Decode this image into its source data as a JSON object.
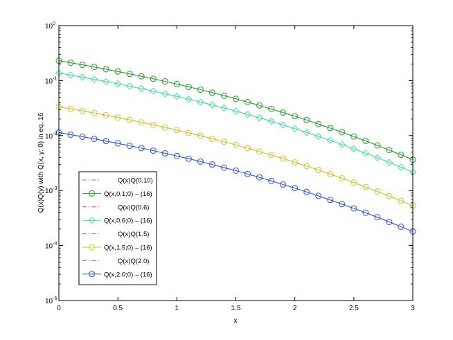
{
  "chart_data": {
    "type": "line",
    "title": "",
    "xlabel": "x",
    "ylabel": "Q(x)Q(y) with Q(x, y; 0) in eq. 16",
    "xlim": [
      0,
      3
    ],
    "ylim": [
      1e-05,
      1
    ],
    "yscale": "log",
    "x_ticks": [
      "0",
      "0.5",
      "1",
      "1.5",
      "2",
      "2.5",
      "3"
    ],
    "y_ticks": [
      {
        "base": "10",
        "exp": "-5"
      },
      {
        "base": "10",
        "exp": "-4"
      },
      {
        "base": "10",
        "exp": "-3"
      },
      {
        "base": "10",
        "exp": "-2"
      },
      {
        "base": "10",
        "exp": "-1"
      },
      {
        "base": "10",
        "exp": "0"
      }
    ],
    "grid": false,
    "legend_position": "lower-left",
    "x": [
      0,
      0.1,
      0.2,
      0.3,
      0.4,
      0.5,
      0.6,
      0.7,
      0.8,
      0.9,
      1.0,
      1.1,
      1.2,
      1.3,
      1.4,
      1.5,
      1.6,
      1.7,
      1.8,
      1.9,
      2.0,
      2.1,
      2.2,
      2.3,
      2.4,
      2.5,
      2.6,
      2.7,
      2.8,
      2.9,
      3.0
    ],
    "series": [
      {
        "name": "Q(x)Q(0.10)",
        "color": "#6a6ad8",
        "style": "dashdot",
        "marker": "none",
        "values": [
          0.2302,
          0.2113,
          0.1935,
          0.1768,
          0.1611,
          0.1464,
          0.1327,
          0.1198,
          0.1078,
          0.0967,
          0.0865,
          0.077,
          0.0683,
          0.0604,
          0.0532,
          0.0466,
          0.0406,
          0.0353,
          0.0305,
          0.0262,
          0.0225,
          0.0192,
          0.0162,
          0.0137,
          0.0115,
          0.00962,
          0.008,
          0.00662,
          0.00545,
          0.00446,
          0.00364
        ]
      },
      {
        "name": "Q(x,0.1;0) – (16)",
        "color": "#1fa01f",
        "style": "solid",
        "marker": "circle",
        "values": [
          0.2302,
          0.2113,
          0.1935,
          0.1768,
          0.1611,
          0.1464,
          0.1327,
          0.1198,
          0.1078,
          0.0967,
          0.0865,
          0.077,
          0.0683,
          0.0604,
          0.0532,
          0.0466,
          0.0406,
          0.0353,
          0.0305,
          0.0262,
          0.0225,
          0.0192,
          0.0162,
          0.0137,
          0.0115,
          0.00962,
          0.008,
          0.00662,
          0.00545,
          0.00446,
          0.00364
        ]
      },
      {
        "name": "Q(x)Q(0.6)",
        "color": "#d84040",
        "style": "dashdot",
        "marker": "none",
        "values": [
          0.1371,
          0.1259,
          0.1153,
          0.1053,
          0.096,
          0.0872,
          0.079,
          0.0714,
          0.0642,
          0.0576,
          0.0515,
          0.0459,
          0.0407,
          0.036,
          0.0317,
          0.0278,
          0.0242,
          0.021,
          0.0182,
          0.0156,
          0.0134,
          0.0114,
          0.00967,
          0.00817,
          0.00686,
          0.00573,
          0.00477,
          0.00395,
          0.00325,
          0.00266,
          0.00217
        ]
      },
      {
        "name": "Q(x,0.6;0) – (16)",
        "color": "#3de0a8",
        "style": "solid",
        "marker": "diamond",
        "values": [
          0.1371,
          0.1259,
          0.1153,
          0.1053,
          0.096,
          0.0872,
          0.079,
          0.0714,
          0.0642,
          0.0576,
          0.0515,
          0.0459,
          0.0407,
          0.036,
          0.0317,
          0.0278,
          0.0242,
          0.021,
          0.0182,
          0.0156,
          0.0134,
          0.0114,
          0.00967,
          0.00817,
          0.00686,
          0.00573,
          0.00477,
          0.00395,
          0.00325,
          0.00266,
          0.00217
        ]
      },
      {
        "name": "Q(x)Q(1.5)",
        "color": "#c050d0",
        "style": "dashdot",
        "marker": "none",
        "values": [
          0.0334,
          0.0307,
          0.0281,
          0.0257,
          0.0234,
          0.0213,
          0.0193,
          0.0174,
          0.0157,
          0.0141,
          0.0126,
          0.0112,
          0.00993,
          0.00878,
          0.00773,
          0.00678,
          0.00591,
          0.00513,
          0.00443,
          0.00381,
          0.00326,
          0.00278,
          0.00236,
          0.00199,
          0.00167,
          0.0014,
          0.00116,
          0.000963,
          0.000793,
          0.00065,
          0.00053
        ]
      },
      {
        "name": "Q(x,1.5;0) – (16)",
        "color": "#c8c820",
        "style": "solid",
        "marker": "circle",
        "values": [
          0.0334,
          0.0307,
          0.0281,
          0.0257,
          0.0234,
          0.0213,
          0.0193,
          0.0174,
          0.0157,
          0.0141,
          0.0126,
          0.0112,
          0.00993,
          0.00878,
          0.00773,
          0.00678,
          0.00591,
          0.00513,
          0.00443,
          0.00381,
          0.00326,
          0.00278,
          0.00236,
          0.00199,
          0.00167,
          0.0014,
          0.00116,
          0.000963,
          0.000793,
          0.00065,
          0.00053
        ]
      },
      {
        "name": "Q(x)Q(2.0)",
        "color": "#707070",
        "style": "dashdot",
        "marker": "none",
        "values": [
          0.0114,
          0.0104,
          0.00954,
          0.00872,
          0.00795,
          0.00722,
          0.00654,
          0.00591,
          0.00532,
          0.00477,
          0.00426,
          0.0038,
          0.00337,
          0.00298,
          0.00262,
          0.0023,
          0.002,
          0.00174,
          0.0015,
          0.00129,
          0.00111,
          0.000944,
          0.0008,
          0.000675,
          0.000567,
          0.000474,
          0.000395,
          0.000327,
          0.000269,
          0.00022,
          0.00018
        ]
      },
      {
        "name": "Q(x,2.0;0) – (16)",
        "color": "#2850e0",
        "style": "solid",
        "marker": "circle",
        "values": [
          0.0114,
          0.0104,
          0.00954,
          0.00872,
          0.00795,
          0.00722,
          0.00654,
          0.00591,
          0.00532,
          0.00477,
          0.00426,
          0.0038,
          0.00337,
          0.00298,
          0.00262,
          0.0023,
          0.002,
          0.00174,
          0.0015,
          0.00129,
          0.00111,
          0.000944,
          0.0008,
          0.000675,
          0.000567,
          0.000474,
          0.000395,
          0.000327,
          0.000269,
          0.00022,
          0.00018
        ]
      }
    ]
  }
}
